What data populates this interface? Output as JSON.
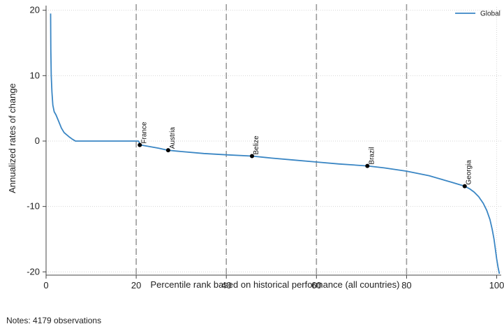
{
  "chart_data": {
    "type": "line",
    "xlabel": "Percentile rank based on historical performance (all countries)",
    "ylabel": "Annualized rates of change",
    "xlim": [
      0,
      101
    ],
    "ylim": [
      -20.5,
      20.5
    ],
    "xticks": [
      0,
      20,
      40,
      60,
      80,
      100
    ],
    "yticks": [
      20,
      10,
      0,
      -10,
      -20
    ],
    "vlines": [
      20,
      40,
      60,
      80
    ],
    "grid": "dotted horizontal and vertical",
    "legend": {
      "position": "top-right",
      "entries": [
        "Global"
      ]
    },
    "series": [
      {
        "name": "Global",
        "color": "#3a86c4",
        "x": [
          1.0,
          1.05,
          1.15,
          1.3,
          1.5,
          1.8,
          2.2,
          2.8,
          3.4,
          4.0,
          4.5,
          5.2,
          5.8,
          6.3,
          6.5,
          6.6,
          20.5,
          21.0,
          25.0,
          27.0,
          30.0,
          35.0,
          40.0,
          45.7,
          50.0,
          55.0,
          60.0,
          65.0,
          71.3,
          75.0,
          80.0,
          85.0,
          88.0,
          90.0,
          92.9,
          94.0,
          95.0,
          96.0,
          97.0,
          97.8,
          98.5,
          99.0,
          99.4,
          99.7,
          100.0,
          100.3,
          100.6
        ],
        "y": [
          19.5,
          14.0,
          10.0,
          7.5,
          5.5,
          4.5,
          4.0,
          3.0,
          2.0,
          1.3,
          1.0,
          0.6,
          0.3,
          0.1,
          0.0,
          0.0,
          0.0,
          -0.6,
          -1.1,
          -1.4,
          -1.6,
          -1.9,
          -2.1,
          -2.3,
          -2.6,
          -2.9,
          -3.2,
          -3.5,
          -3.8,
          -4.1,
          -4.6,
          -5.3,
          -5.9,
          -6.3,
          -6.9,
          -7.3,
          -7.8,
          -8.5,
          -9.5,
          -10.6,
          -12.0,
          -13.5,
          -15.0,
          -16.5,
          -18.0,
          -19.3,
          -20.3
        ]
      }
    ],
    "annotations": [
      {
        "label": "France",
        "x": 20.8,
        "y": -0.6
      },
      {
        "label": "Austria",
        "x": 27.1,
        "y": -1.4
      },
      {
        "label": "Belize",
        "x": 45.7,
        "y": -2.3
      },
      {
        "label": "Brazil",
        "x": 71.3,
        "y": -3.8
      },
      {
        "label": "Georgia",
        "x": 92.9,
        "y": -6.9
      }
    ]
  },
  "notes": "Notes: 4179 observations"
}
